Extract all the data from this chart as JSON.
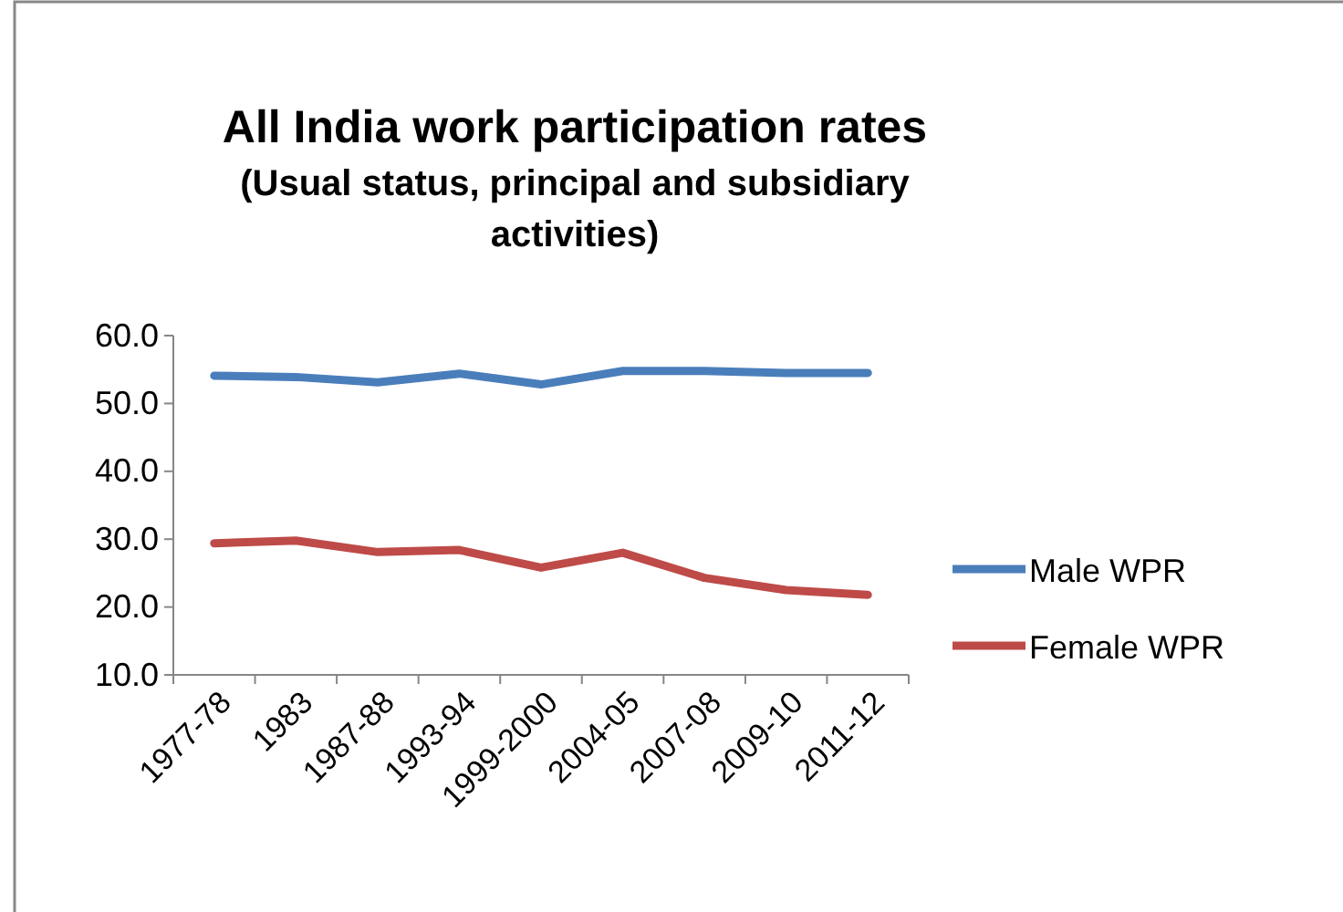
{
  "chart_data": {
    "type": "line",
    "title": "All India work participation rates",
    "subtitle": "(Usual status, principal and subsidiary activities)",
    "categories": [
      "1977-78",
      "1983",
      "1987-88",
      "1993-94",
      "1999-2000",
      "2004-05",
      "2007-08",
      "2009-10",
      "2011-12"
    ],
    "series": [
      {
        "name": "Male WPR",
        "color": "#4a7ebb",
        "values": [
          54.1,
          53.9,
          53.1,
          54.4,
          52.8,
          54.8,
          54.8,
          54.5,
          54.5
        ]
      },
      {
        "name": "Female WPR",
        "color": "#be4b48",
        "values": [
          29.4,
          29.8,
          28.1,
          28.4,
          25.8,
          28.0,
          24.3,
          22.5,
          21.8
        ]
      }
    ],
    "ylim": [
      10,
      60
    ],
    "yticks": [
      {
        "value": 10,
        "label": "10.0"
      },
      {
        "value": 20,
        "label": "20.0"
      },
      {
        "value": 30,
        "label": "30.0"
      },
      {
        "value": 40,
        "label": "40.0"
      },
      {
        "value": 50,
        "label": "50.0"
      },
      {
        "value": 60,
        "label": "60.0"
      }
    ],
    "grid": false,
    "legend": "right",
    "marker": "none",
    "line_style": "solid"
  }
}
